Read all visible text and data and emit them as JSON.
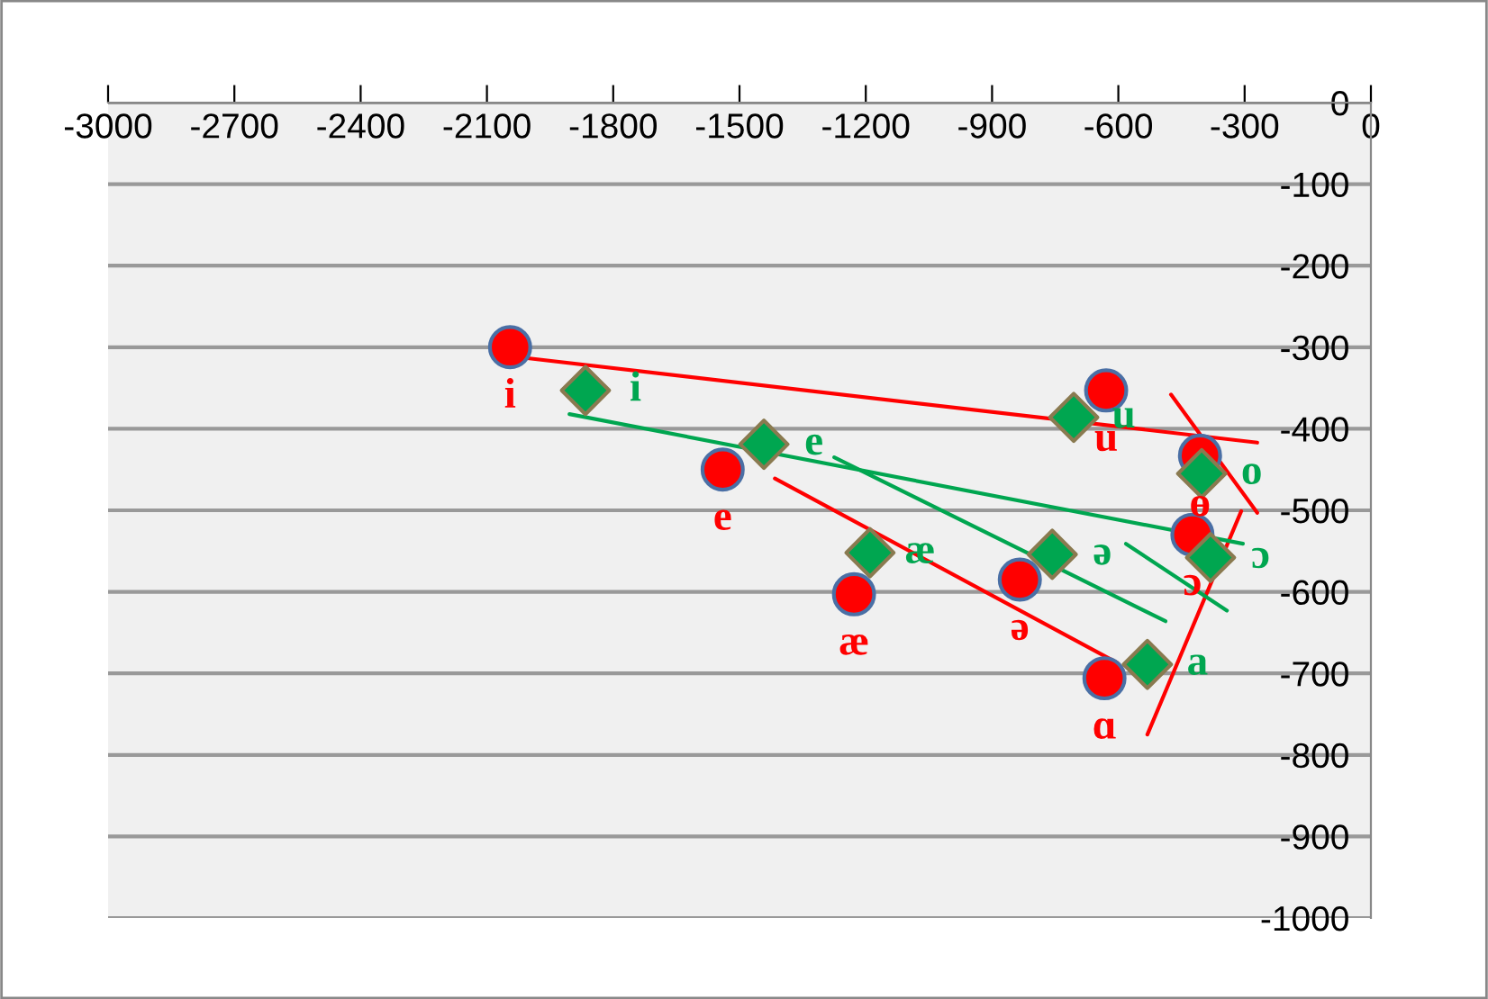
{
  "chart_data": {
    "type": "scatter",
    "xlim": [
      -3000,
      0
    ],
    "ylim": [
      -1000,
      0
    ],
    "xticks": [
      -3000,
      -2700,
      -2400,
      -2100,
      -1800,
      -1500,
      -1200,
      -900,
      -600,
      -300,
      0
    ],
    "yticks": [
      0,
      -100,
      -200,
      -300,
      -400,
      -500,
      -600,
      -700,
      -800,
      -900,
      -1000
    ],
    "grid": "y",
    "legend": false,
    "series": [
      {
        "marker": "circle",
        "color": "#ff0000",
        "x": [
          -2045,
          -1540,
          -1228,
          -834,
          -629,
          -406,
          -424,
          -633
        ],
        "values": [
          -300,
          -450,
          -603,
          -585,
          -353,
          -433,
          -530,
          -706
        ],
        "value_labels": [
          "i",
          "e",
          "æ",
          "ə",
          "u",
          "ɵ",
          "ɔ",
          "ɑ"
        ]
      },
      {
        "marker": "diamond",
        "color": "#00a650",
        "x": [
          -1866,
          -1442,
          -1190,
          -757,
          -706,
          -402,
          -381,
          -531
        ],
        "values": [
          -353,
          -419,
          -552,
          -554,
          -386,
          -455,
          -558,
          -689
        ],
        "value_labels": [
          "i",
          "e",
          "æ",
          "ə",
          "u",
          "o",
          "ɔ",
          "a"
        ]
      },
      {
        "type": "line",
        "marker": "none",
        "color": "#ff0000",
        "x": [
          -2045,
          -270
        ],
        "values": [
          -311,
          -417
        ]
      },
      {
        "type": "line",
        "marker": "none",
        "color": "#ff0000",
        "x": [
          -1416,
          -603
        ],
        "values": [
          -461,
          -687
        ]
      },
      {
        "type": "line",
        "marker": "none",
        "color": "#ff0000",
        "x": [
          -475,
          -270
        ],
        "values": [
          -358,
          -503
        ]
      },
      {
        "type": "line",
        "marker": "none",
        "color": "#ff0000",
        "x": [
          -308,
          -531
        ],
        "values": [
          -501,
          -775
        ]
      },
      {
        "type": "line",
        "marker": "none",
        "color": "#00a650",
        "x": [
          -1904,
          -304
        ],
        "values": [
          -382,
          -541
        ]
      },
      {
        "type": "line",
        "marker": "none",
        "color": "#00a650",
        "x": [
          -1275,
          -488
        ],
        "values": [
          -435,
          -636
        ]
      },
      {
        "type": "line",
        "marker": "none",
        "color": "#00a650",
        "x": [
          -582,
          -342
        ],
        "values": [
          -541,
          -623
        ]
      }
    ]
  }
}
